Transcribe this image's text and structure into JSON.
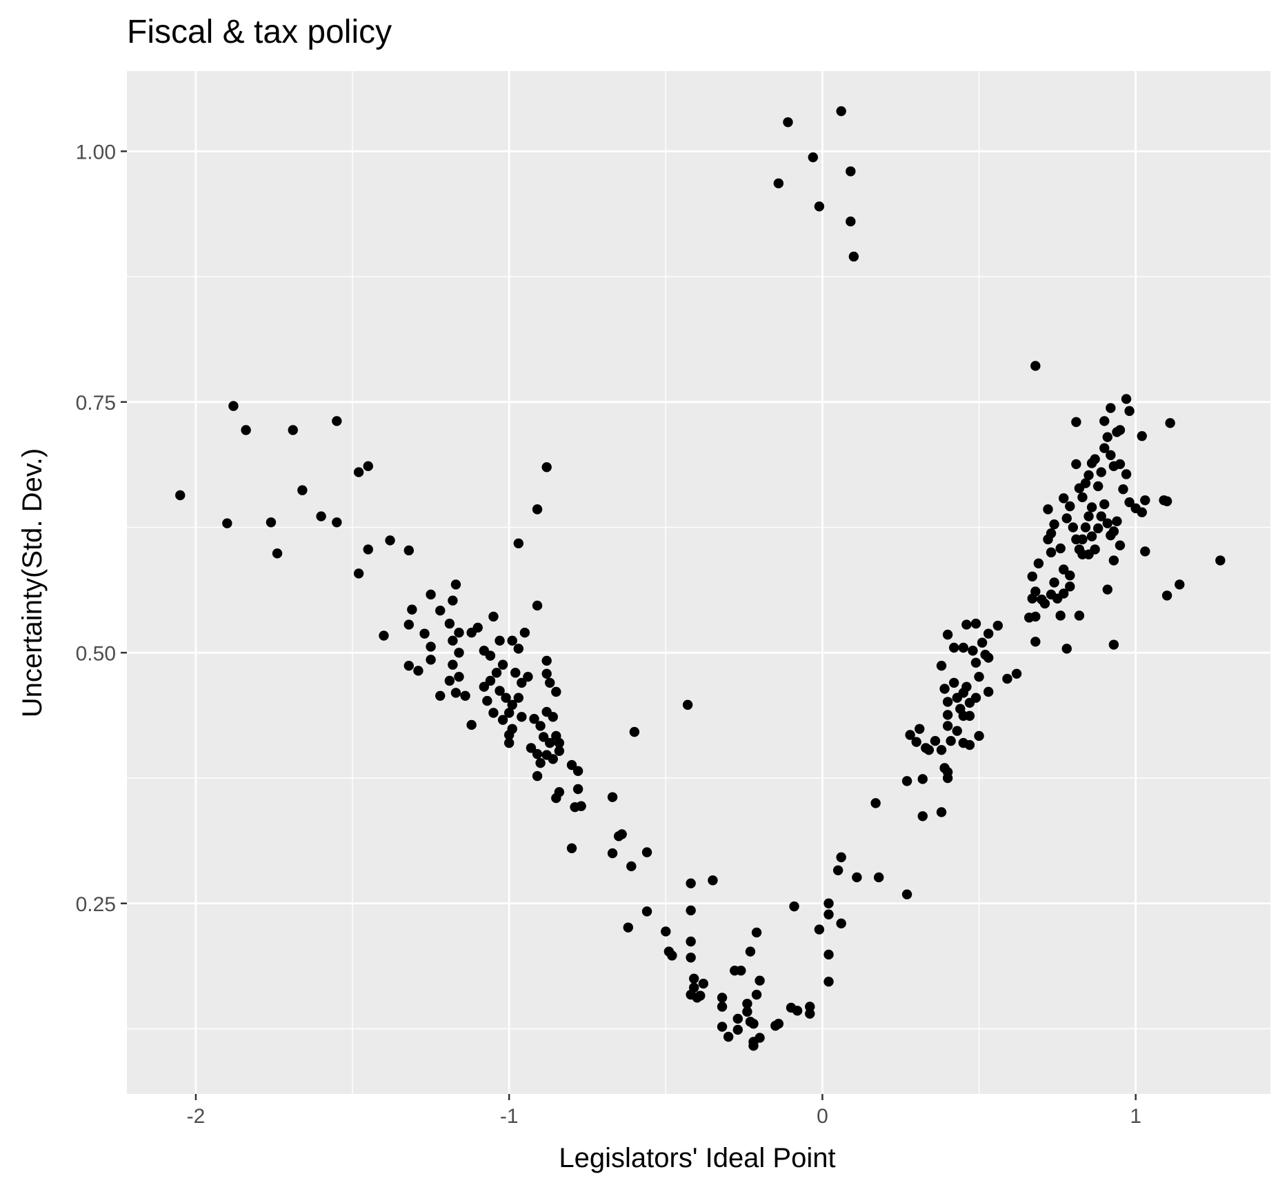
{
  "chart_data": {
    "type": "scatter",
    "title": "Fiscal & tax policy",
    "xlabel": "Legislators' Ideal Point",
    "ylabel": "Uncertainty(Std. Dev.)",
    "xlim": [
      -2.22,
      1.43
    ],
    "ylim": [
      0.06,
      1.08
    ],
    "x_ticks": [
      -2,
      -1,
      0,
      1
    ],
    "x_tick_labels": [
      "-2",
      "-1",
      "0",
      "1"
    ],
    "y_ticks": [
      0.25,
      0.5,
      0.75,
      1.0
    ],
    "y_tick_labels": [
      "0.25",
      "0.50",
      "0.75",
      "1.00"
    ],
    "grid": true,
    "panel_background": "#ebebeb",
    "grid_color": "#ffffff",
    "point_color": "#000000",
    "points": [
      [
        -2.05,
        0.657
      ],
      [
        -1.88,
        0.746
      ],
      [
        -1.9,
        0.629
      ],
      [
        -1.84,
        0.722
      ],
      [
        -1.74,
        0.599
      ],
      [
        -1.76,
        0.63
      ],
      [
        -1.69,
        0.722
      ],
      [
        -1.66,
        0.662
      ],
      [
        -1.6,
        0.636
      ],
      [
        -1.55,
        0.731
      ],
      [
        -1.55,
        0.63
      ],
      [
        -1.48,
        0.68
      ],
      [
        -1.45,
        0.686
      ],
      [
        -1.45,
        0.603
      ],
      [
        -1.48,
        0.579
      ],
      [
        -1.38,
        0.612
      ],
      [
        -1.4,
        0.517
      ],
      [
        -1.32,
        0.602
      ],
      [
        -1.31,
        0.543
      ],
      [
        -1.32,
        0.528
      ],
      [
        -1.32,
        0.487
      ],
      [
        -1.29,
        0.482
      ],
      [
        -1.25,
        0.558
      ],
      [
        -1.22,
        0.542
      ],
      [
        -1.27,
        0.519
      ],
      [
        -1.25,
        0.506
      ],
      [
        -1.25,
        0.493
      ],
      [
        -1.22,
        0.457
      ],
      [
        -1.17,
        0.568
      ],
      [
        -1.18,
        0.552
      ],
      [
        -1.19,
        0.529
      ],
      [
        -1.16,
        0.52
      ],
      [
        -1.18,
        0.512
      ],
      [
        -1.16,
        0.5
      ],
      [
        -1.18,
        0.488
      ],
      [
        -1.16,
        0.476
      ],
      [
        -1.19,
        0.472
      ],
      [
        -1.17,
        0.46
      ],
      [
        -1.12,
        0.428
      ],
      [
        -1.14,
        0.457
      ],
      [
        -1.12,
        0.52
      ],
      [
        -1.1,
        0.525
      ],
      [
        -1.08,
        0.502
      ],
      [
        -1.06,
        0.497
      ],
      [
        -1.05,
        0.536
      ],
      [
        -1.03,
        0.512
      ],
      [
        -1.02,
        0.488
      ],
      [
        -1.04,
        0.48
      ],
      [
        -1.06,
        0.472
      ],
      [
        -1.08,
        0.466
      ],
      [
        -1.03,
        0.462
      ],
      [
        -1.01,
        0.455
      ],
      [
        -0.99,
        0.448
      ],
      [
        -1.0,
        0.44
      ],
      [
        -1.02,
        0.433
      ],
      [
        -1.05,
        0.44
      ],
      [
        -1.07,
        0.452
      ],
      [
        -0.99,
        0.512
      ],
      [
        -0.97,
        0.504
      ],
      [
        -0.98,
        0.48
      ],
      [
        -0.96,
        0.47
      ],
      [
        -0.97,
        0.455
      ],
      [
        -0.95,
        0.52
      ],
      [
        -0.94,
        0.476
      ],
      [
        -0.96,
        0.436
      ],
      [
        -0.99,
        0.424
      ],
      [
        -1.0,
        0.418
      ],
      [
        -1.0,
        0.41
      ],
      [
        -0.97,
        0.609
      ],
      [
        -0.91,
        0.643
      ],
      [
        -0.91,
        0.547
      ],
      [
        -0.88,
        0.685
      ],
      [
        -0.88,
        0.492
      ],
      [
        -0.88,
        0.479
      ],
      [
        -0.87,
        0.47
      ],
      [
        -0.85,
        0.461
      ],
      [
        -0.92,
        0.434
      ],
      [
        -0.9,
        0.427
      ],
      [
        -0.88,
        0.441
      ],
      [
        -0.86,
        0.436
      ],
      [
        -0.93,
        0.405
      ],
      [
        -0.91,
        0.399
      ],
      [
        -0.9,
        0.39
      ],
      [
        -0.91,
        0.377
      ],
      [
        -0.89,
        0.416
      ],
      [
        -0.87,
        0.41
      ],
      [
        -0.85,
        0.417
      ],
      [
        -0.84,
        0.41
      ],
      [
        -0.84,
        0.402
      ],
      [
        -0.86,
        0.394
      ],
      [
        -0.88,
        0.398
      ],
      [
        -0.8,
        0.388
      ],
      [
        -0.78,
        0.382
      ],
      [
        -0.78,
        0.364
      ],
      [
        -0.79,
        0.346
      ],
      [
        -0.77,
        0.347
      ],
      [
        -0.84,
        0.361
      ],
      [
        -0.85,
        0.355
      ],
      [
        -0.8,
        0.305
      ],
      [
        -0.67,
        0.356
      ],
      [
        -0.65,
        0.317
      ],
      [
        -0.64,
        0.319
      ],
      [
        -0.6,
        0.421
      ],
      [
        -0.56,
        0.301
      ],
      [
        -0.61,
        0.287
      ],
      [
        -0.67,
        0.3
      ],
      [
        -0.56,
        0.242
      ],
      [
        -0.62,
        0.226
      ],
      [
        -0.43,
        0.448
      ],
      [
        -0.42,
        0.27
      ],
      [
        -0.35,
        0.273
      ],
      [
        -0.42,
        0.243
      ],
      [
        -0.5,
        0.222
      ],
      [
        -0.49,
        0.202
      ],
      [
        -0.48,
        0.198
      ],
      [
        -0.42,
        0.196
      ],
      [
        -0.42,
        0.212
      ],
      [
        -0.41,
        0.175
      ],
      [
        -0.38,
        0.17
      ],
      [
        -0.41,
        0.166
      ],
      [
        -0.39,
        0.158
      ],
      [
        -0.42,
        0.159
      ],
      [
        -0.4,
        0.156
      ],
      [
        -0.32,
        0.156
      ],
      [
        -0.32,
        0.147
      ],
      [
        -0.32,
        0.127
      ],
      [
        -0.3,
        0.117
      ],
      [
        -0.26,
        0.183
      ],
      [
        -0.28,
        0.183
      ],
      [
        -0.24,
        0.15
      ],
      [
        -0.24,
        0.142
      ],
      [
        -0.27,
        0.135
      ],
      [
        -0.27,
        0.124
      ],
      [
        -0.23,
        0.132
      ],
      [
        -0.22,
        0.112
      ],
      [
        -0.22,
        0.108
      ],
      [
        -0.2,
        0.116
      ],
      [
        -0.22,
        0.13
      ],
      [
        -0.21,
        0.159
      ],
      [
        -0.2,
        0.173
      ],
      [
        -0.21,
        0.221
      ],
      [
        -0.23,
        0.202
      ],
      [
        -0.14,
        0.13
      ],
      [
        -0.15,
        0.128
      ],
      [
        -0.1,
        0.146
      ],
      [
        -0.08,
        0.143
      ],
      [
        -0.09,
        0.247
      ],
      [
        -0.04,
        0.147
      ],
      [
        -0.04,
        0.14
      ],
      [
        -0.01,
        0.224
      ],
      [
        0.02,
        0.172
      ],
      [
        0.02,
        0.199
      ],
      [
        0.02,
        0.239
      ],
      [
        0.02,
        0.25
      ],
      [
        0.06,
        0.23
      ],
      [
        0.06,
        0.296
      ],
      [
        0.05,
        0.283
      ],
      [
        0.11,
        0.276
      ],
      [
        0.18,
        0.276
      ],
      [
        0.17,
        0.35
      ],
      [
        0.27,
        0.259
      ],
      [
        0.27,
        0.372
      ],
      [
        0.32,
        0.374
      ],
      [
        0.32,
        0.337
      ],
      [
        0.28,
        0.418
      ],
      [
        0.3,
        0.411
      ],
      [
        0.31,
        0.424
      ],
      [
        0.33,
        0.405
      ],
      [
        0.34,
        0.403
      ],
      [
        0.36,
        0.412
      ],
      [
        0.38,
        0.403
      ],
      [
        0.38,
        0.341
      ],
      [
        0.39,
        0.385
      ],
      [
        0.4,
        0.381
      ],
      [
        0.4,
        0.375
      ],
      [
        0.41,
        0.412
      ],
      [
        0.43,
        0.422
      ],
      [
        0.45,
        0.41
      ],
      [
        0.47,
        0.408
      ],
      [
        0.5,
        0.417
      ],
      [
        0.38,
        0.487
      ],
      [
        0.39,
        0.464
      ],
      [
        0.4,
        0.451
      ],
      [
        0.4,
        0.438
      ],
      [
        0.4,
        0.427
      ],
      [
        0.42,
        0.47
      ],
      [
        0.43,
        0.455
      ],
      [
        0.44,
        0.444
      ],
      [
        0.45,
        0.46
      ],
      [
        0.45,
        0.437
      ],
      [
        0.46,
        0.466
      ],
      [
        0.47,
        0.45
      ],
      [
        0.47,
        0.437
      ],
      [
        0.49,
        0.455
      ],
      [
        0.4,
        0.518
      ],
      [
        0.42,
        0.505
      ],
      [
        0.45,
        0.505
      ],
      [
        0.46,
        0.528
      ],
      [
        0.49,
        0.529
      ],
      [
        0.48,
        0.502
      ],
      [
        0.49,
        0.49
      ],
      [
        0.5,
        0.476
      ],
      [
        0.52,
        0.498
      ],
      [
        0.51,
        0.51
      ],
      [
        0.53,
        0.495
      ],
      [
        0.53,
        0.519
      ],
      [
        0.56,
        0.527
      ],
      [
        0.53,
        0.461
      ],
      [
        0.59,
        0.474
      ],
      [
        0.62,
        0.479
      ],
      [
        0.66,
        0.535
      ],
      [
        0.68,
        0.536
      ],
      [
        0.68,
        0.511
      ],
      [
        0.67,
        0.576
      ],
      [
        0.69,
        0.589
      ],
      [
        0.68,
        0.561
      ],
      [
        0.67,
        0.554
      ],
      [
        0.7,
        0.553
      ],
      [
        0.73,
        0.558
      ],
      [
        0.71,
        0.549
      ],
      [
        0.75,
        0.554
      ],
      [
        0.77,
        0.559
      ],
      [
        0.76,
        0.537
      ],
      [
        0.78,
        0.504
      ],
      [
        0.72,
        0.613
      ],
      [
        0.73,
        0.619
      ],
      [
        0.74,
        0.628
      ],
      [
        0.73,
        0.6
      ],
      [
        0.76,
        0.604
      ],
      [
        0.74,
        0.57
      ],
      [
        0.77,
        0.583
      ],
      [
        0.79,
        0.577
      ],
      [
        0.79,
        0.566
      ],
      [
        0.82,
        0.537
      ],
      [
        0.72,
        0.643
      ],
      [
        0.77,
        0.654
      ],
      [
        0.79,
        0.646
      ],
      [
        0.78,
        0.634
      ],
      [
        0.8,
        0.625
      ],
      [
        0.81,
        0.613
      ],
      [
        0.82,
        0.603
      ],
      [
        0.83,
        0.613
      ],
      [
        0.84,
        0.625
      ],
      [
        0.85,
        0.636
      ],
      [
        0.86,
        0.645
      ],
      [
        0.86,
        0.616
      ],
      [
        0.87,
        0.603
      ],
      [
        0.88,
        0.624
      ],
      [
        0.89,
        0.636
      ],
      [
        0.9,
        0.648
      ],
      [
        0.91,
        0.629
      ],
      [
        0.92,
        0.617
      ],
      [
        0.93,
        0.621
      ],
      [
        0.94,
        0.631
      ],
      [
        0.95,
        0.607
      ],
      [
        0.81,
        0.688
      ],
      [
        0.82,
        0.664
      ],
      [
        0.83,
        0.655
      ],
      [
        0.84,
        0.669
      ],
      [
        0.85,
        0.677
      ],
      [
        0.86,
        0.689
      ],
      [
        0.87,
        0.693
      ],
      [
        0.88,
        0.666
      ],
      [
        0.89,
        0.68
      ],
      [
        0.9,
        0.704
      ],
      [
        0.91,
        0.715
      ],
      [
        0.92,
        0.697
      ],
      [
        0.93,
        0.686
      ],
      [
        0.81,
        0.73
      ],
      [
        0.9,
        0.731
      ],
      [
        0.92,
        0.744
      ],
      [
        0.94,
        0.72
      ],
      [
        0.95,
        0.722
      ],
      [
        0.97,
        0.753
      ],
      [
        0.98,
        0.741
      ],
      [
        0.95,
        0.688
      ],
      [
        0.97,
        0.678
      ],
      [
        0.96,
        0.663
      ],
      [
        0.98,
        0.65
      ],
      [
        1.0,
        0.644
      ],
      [
        1.02,
        0.64
      ],
      [
        1.02,
        0.716
      ],
      [
        1.03,
        0.652
      ],
      [
        1.03,
        0.601
      ],
      [
        1.09,
        0.652
      ],
      [
        1.1,
        0.651
      ],
      [
        1.11,
        0.729
      ],
      [
        1.1,
        0.557
      ],
      [
        1.14,
        0.568
      ],
      [
        0.91,
        0.563
      ],
      [
        0.93,
        0.508
      ],
      [
        0.93,
        0.592
      ],
      [
        0.68,
        0.786
      ],
      [
        0.83,
        0.598
      ],
      [
        0.85,
        0.598
      ],
      [
        1.27,
        0.592
      ],
      [
        -0.11,
        1.029
      ],
      [
        -0.14,
        0.968
      ],
      [
        -0.03,
        0.994
      ],
      [
        -0.01,
        0.945
      ],
      [
        0.06,
        1.04
      ],
      [
        0.09,
        0.98
      ],
      [
        0.09,
        0.93
      ],
      [
        0.1,
        0.895
      ]
    ]
  }
}
